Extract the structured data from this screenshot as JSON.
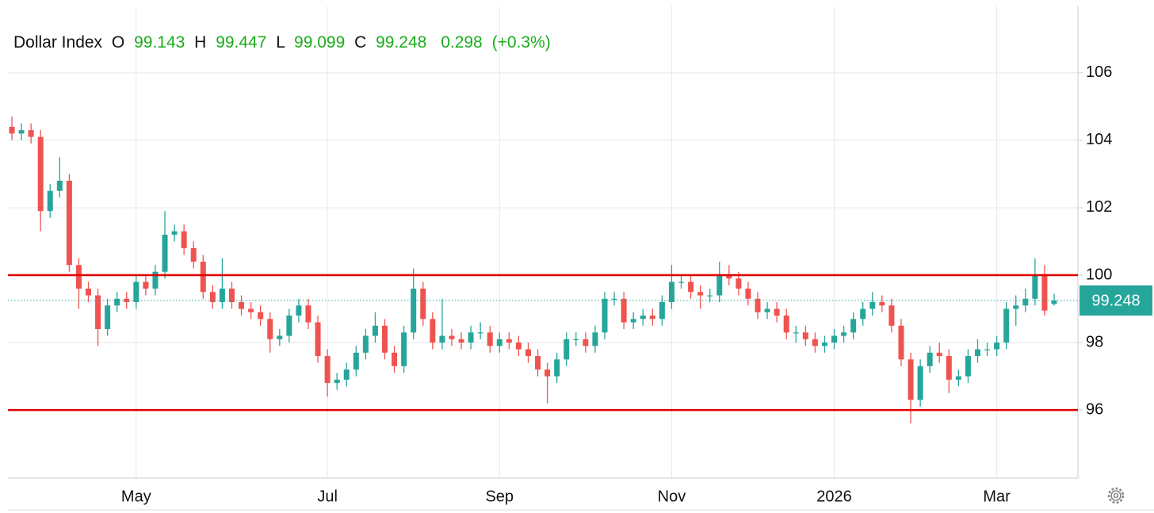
{
  "chart_data": {
    "type": "candlestick",
    "title": "Dollar Index",
    "open_label": "O",
    "high_label": "H",
    "low_label": "L",
    "close_label": "C",
    "change": 0.298,
    "change_percent": {
      "value": 0.3,
      "label": "(+0.3%)"
    },
    "categories": [
      null,
      null,
      null,
      null,
      null,
      null,
      null,
      null,
      null,
      null,
      null,
      null,
      null,
      "May",
      null,
      null,
      null,
      null,
      null,
      null,
      null,
      null,
      null,
      null,
      null,
      null,
      null,
      null,
      null,
      null,
      null,
      null,
      null,
      "Jul",
      null,
      null,
      null,
      null,
      null,
      null,
      null,
      null,
      null,
      null,
      null,
      null,
      null,
      null,
      null,
      null,
      null,
      "Sep",
      null,
      null,
      null,
      null,
      null,
      null,
      null,
      null,
      null,
      null,
      null,
      null,
      null,
      null,
      null,
      null,
      null,
      "Nov",
      null,
      null,
      null,
      null,
      null,
      null,
      null,
      null,
      null,
      null,
      null,
      null,
      null,
      null,
      null,
      null,
      "2026",
      null,
      null,
      null,
      null,
      null,
      null,
      null,
      null,
      null,
      null,
      null,
      null,
      null,
      null,
      null,
      null,
      "Mar",
      null,
      null,
      null,
      null,
      null,
      null
    ],
    "open": [
      104.4,
      104.2,
      104.3,
      104.1,
      101.9,
      102.5,
      102.8,
      100.3,
      99.6,
      99.4,
      98.4,
      99.1,
      99.3,
      99.2,
      99.8,
      99.6,
      100.1,
      101.2,
      101.3,
      100.8,
      100.4,
      99.5,
      99.2,
      99.6,
      99.2,
      99.0,
      98.9,
      98.7,
      98.1,
      98.2,
      98.8,
      99.1,
      98.6,
      97.6,
      96.8,
      96.9,
      97.2,
      97.7,
      98.2,
      98.5,
      97.7,
      97.3,
      98.3,
      99.6,
      98.7,
      98.0,
      98.2,
      98.1,
      98.0,
      98.3,
      98.3,
      97.9,
      98.1,
      98.0,
      97.8,
      97.6,
      97.2,
      97.0,
      97.5,
      98.1,
      98.1,
      97.9,
      98.3,
      99.3,
      99.3,
      98.6,
      98.7,
      98.8,
      98.7,
      99.2,
      99.8,
      99.8,
      99.5,
      99.4,
      99.4,
      100.0,
      99.9,
      99.6,
      99.3,
      98.9,
      99.0,
      98.8,
      98.3,
      98.3,
      98.1,
      97.9,
      98.0,
      98.2,
      98.3,
      98.7,
      99.0,
      99.2,
      99.1,
      98.5,
      97.5,
      96.3,
      97.3,
      97.7,
      97.6,
      96.9,
      97.0,
      97.6,
      97.8,
      97.8,
      98.0,
      99.0,
      99.1,
      99.3,
      100.0,
      99.143
    ],
    "high": [
      104.7,
      104.5,
      104.5,
      104.3,
      102.7,
      103.5,
      103.0,
      100.5,
      99.8,
      99.6,
      99.3,
      99.5,
      99.5,
      100.0,
      100.0,
      100.3,
      101.9,
      101.5,
      101.5,
      101.0,
      100.6,
      99.7,
      100.5,
      99.8,
      99.4,
      99.2,
      99.1,
      98.9,
      98.4,
      99.0,
      99.3,
      99.3,
      98.8,
      97.8,
      97.1,
      97.4,
      97.9,
      98.4,
      98.9,
      98.7,
      97.9,
      98.5,
      100.2,
      99.8,
      98.9,
      99.3,
      98.4,
      98.3,
      98.5,
      98.6,
      98.5,
      98.3,
      98.3,
      98.2,
      98.0,
      97.8,
      97.4,
      97.7,
      98.3,
      98.3,
      98.3,
      98.5,
      99.5,
      99.5,
      99.5,
      98.9,
      99.0,
      99.0,
      99.4,
      100.3,
      100.0,
      100.0,
      99.7,
      99.6,
      100.4,
      100.3,
      100.1,
      99.8,
      99.5,
      99.2,
      99.2,
      99.0,
      98.5,
      98.5,
      98.3,
      98.2,
      98.4,
      98.5,
      98.9,
      99.2,
      99.5,
      99.4,
      99.3,
      98.7,
      97.7,
      97.5,
      97.9,
      98.0,
      97.8,
      97.2,
      97.8,
      98.1,
      98.0,
      98.2,
      99.2,
      99.4,
      99.6,
      100.5,
      100.3,
      99.447
    ],
    "low": [
      104.0,
      104.0,
      103.9,
      101.3,
      101.7,
      102.3,
      100.1,
      99.0,
      99.2,
      97.9,
      98.2,
      98.9,
      99.0,
      99.0,
      99.4,
      99.4,
      99.9,
      101.0,
      100.6,
      100.2,
      99.3,
      99.0,
      99.0,
      99.0,
      98.8,
      98.7,
      98.5,
      97.7,
      97.9,
      98.0,
      98.6,
      98.4,
      97.4,
      96.4,
      96.6,
      96.7,
      97.0,
      97.5,
      98.0,
      97.5,
      97.1,
      97.1,
      98.1,
      98.5,
      97.8,
      97.8,
      97.9,
      97.8,
      97.8,
      98.1,
      97.7,
      97.7,
      97.8,
      97.6,
      97.4,
      97.0,
      96.2,
      96.8,
      97.3,
      97.9,
      97.7,
      97.7,
      98.1,
      99.1,
      98.4,
      98.4,
      98.5,
      98.5,
      98.5,
      99.0,
      99.6,
      99.3,
      99.0,
      99.2,
      99.2,
      99.7,
      99.4,
      99.1,
      98.7,
      98.7,
      98.6,
      98.1,
      98.0,
      97.9,
      97.7,
      97.7,
      97.8,
      98.0,
      98.1,
      98.5,
      98.8,
      98.9,
      98.3,
      97.3,
      95.6,
      96.1,
      97.1,
      97.4,
      96.5,
      96.7,
      96.8,
      97.4,
      97.6,
      97.6,
      97.8,
      98.5,
      98.9,
      99.1,
      98.8,
      99.099
    ],
    "close": [
      104.2,
      104.3,
      104.1,
      101.9,
      102.5,
      102.8,
      100.3,
      99.6,
      99.4,
      98.4,
      99.1,
      99.3,
      99.2,
      99.8,
      99.6,
      100.1,
      101.2,
      101.3,
      100.8,
      100.4,
      99.5,
      99.2,
      99.6,
      99.2,
      99.0,
      98.9,
      98.7,
      98.1,
      98.2,
      98.8,
      99.1,
      98.6,
      97.6,
      96.8,
      96.9,
      97.2,
      97.7,
      98.2,
      98.5,
      97.7,
      97.3,
      98.3,
      99.6,
      98.7,
      98.0,
      98.2,
      98.1,
      98.0,
      98.3,
      98.3,
      97.9,
      98.1,
      98.0,
      97.8,
      97.6,
      97.2,
      97.0,
      97.5,
      98.1,
      98.1,
      97.9,
      98.3,
      99.3,
      99.3,
      98.6,
      98.7,
      98.8,
      98.7,
      99.2,
      99.8,
      99.8,
      99.5,
      99.4,
      99.4,
      100.0,
      99.9,
      99.6,
      99.3,
      98.9,
      99.0,
      98.8,
      98.3,
      98.3,
      98.1,
      97.9,
      98.0,
      98.2,
      98.3,
      98.7,
      99.0,
      99.2,
      99.1,
      98.5,
      97.5,
      96.3,
      97.3,
      97.7,
      97.6,
      96.9,
      97.0,
      97.6,
      97.8,
      97.8,
      98.0,
      99.0,
      99.1,
      99.3,
      100.0,
      98.95,
      99.248
    ],
    "up_color": "#26a69a",
    "down_color": "#ef5350",
    "hlines": [
      100,
      96
    ],
    "hline_color": "#e00000",
    "ylim": [
      93.98,
      108.16
    ],
    "yticks": [
      96,
      98,
      100,
      102,
      104,
      106
    ],
    "grid": true
  }
}
